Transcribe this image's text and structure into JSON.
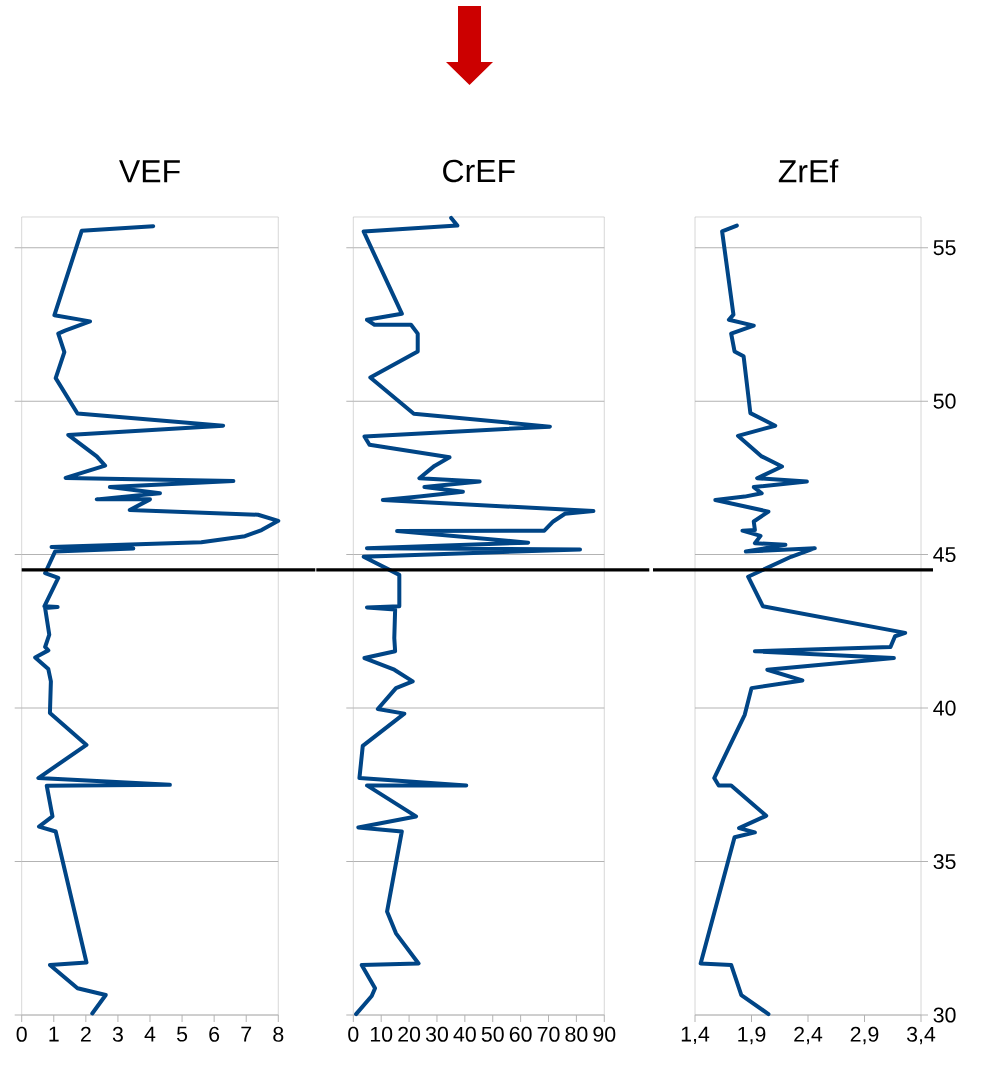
{
  "chart_data": [
    {
      "type": "line",
      "title": "VEF",
      "color": "#004586",
      "xlim": [
        0,
        8
      ],
      "xticks": [
        0,
        1,
        2,
        3,
        4,
        5,
        6,
        7,
        8
      ],
      "ylim": [
        30,
        56
      ],
      "yticks": [
        30,
        35,
        40,
        45,
        50,
        55
      ],
      "grid": "y",
      "tick_labels": "x",
      "ref_lines": [
        {
          "axis": "y",
          "value": 44.5,
          "color": "#000000"
        }
      ],
      "x": [
        4.1,
        1.87,
        1.02,
        2.13,
        1.35,
        1.14,
        1.33,
        1.06,
        1.74,
        6.28,
        1.45,
        2.34,
        2.6,
        1.37,
        6.6,
        2.75,
        4.31,
        2.34,
        4.0,
        3.37,
        7.37,
        8.0,
        7.48,
        6.96,
        5.6,
        0.93,
        3.48,
        1.04,
        0.73,
        1.14,
        0.71,
        1.12,
        0.73,
        0.86,
        0.73,
        0.83,
        0.42,
        0.83,
        0.91,
        0.88,
        2.02,
        0.52,
        4.62,
        0.78,
        0.96,
        0.54,
        1.06,
        2.02,
        0.88,
        1.74,
        2.62,
        2.2
      ],
      "values": [
        55.7,
        55.55,
        52.8,
        52.6,
        52.3,
        52.2,
        51.6,
        50.75,
        49.6,
        49.2,
        48.9,
        48.2,
        47.9,
        47.5,
        47.4,
        47.2,
        47.0,
        46.8,
        46.8,
        46.45,
        46.3,
        46.1,
        45.8,
        45.6,
        45.4,
        45.25,
        45.2,
        45.1,
        44.4,
        44.24,
        43.32,
        43.29,
        43.26,
        42.39,
        41.99,
        41.88,
        41.65,
        41.27,
        40.87,
        39.84,
        38.8,
        37.72,
        37.5,
        37.47,
        36.47,
        36.14,
        35.98,
        31.71,
        31.63,
        30.87,
        30.65,
        30.05
      ]
    },
    {
      "type": "line",
      "title": "CrEF",
      "color": "#004586",
      "xlim": [
        0,
        90
      ],
      "xticks": [
        0,
        10,
        20,
        30,
        40,
        50,
        60,
        70,
        80,
        90
      ],
      "ylim": [
        30,
        56
      ],
      "yticks": [
        30,
        35,
        40,
        45,
        50,
        55
      ],
      "grid": "y",
      "tick_labels": "x",
      "ref_lines": [
        {
          "axis": "y",
          "value": 44.5,
          "color": "#000000"
        }
      ],
      "x": [
        35.1,
        37.3,
        3.7,
        17.4,
        4.9,
        7.6,
        20.7,
        23.1,
        23.1,
        6.1,
        21.7,
        70.5,
        4.0,
        5.8,
        34.5,
        29.1,
        23.7,
        45.3,
        25.5,
        39.3,
        23.7,
        10.6,
        86.1,
        75.9,
        71.7,
        68.5,
        15.7,
        62.7,
        4.9,
        81.3,
        3.7,
        16.5,
        16.5,
        4.9,
        15.0,
        14.7,
        15.0,
        4.0,
        14.7,
        21.3,
        15.3,
        8.8,
        18.3,
        3.4,
        2.2,
        40.5,
        4.9,
        22.5,
        1.8,
        17.4,
        12.1,
        15.3,
        23.4,
        3.0,
        7.8,
        6.6,
        1.0
      ],
      "values": [
        55.97,
        55.72,
        55.53,
        52.85,
        52.65,
        52.49,
        52.49,
        52.2,
        51.62,
        50.77,
        49.59,
        49.17,
        48.85,
        48.58,
        48.17,
        47.89,
        47.49,
        47.38,
        47.2,
        47.05,
        46.89,
        46.78,
        46.42,
        46.33,
        46.08,
        45.78,
        45.77,
        45.39,
        45.21,
        45.17,
        44.93,
        44.34,
        43.32,
        43.28,
        43.21,
        42.28,
        41.85,
        41.63,
        41.25,
        40.87,
        40.65,
        39.97,
        39.82,
        38.77,
        37.72,
        37.48,
        37.48,
        36.47,
        36.11,
        35.98,
        33.37,
        32.66,
        31.68,
        31.63,
        30.87,
        30.62,
        30.03
      ]
    },
    {
      "type": "line",
      "title": "ZrEf",
      "color": "#004586",
      "xlim": [
        1.4,
        3.4
      ],
      "xticks": [
        {
          "value": 1.4,
          "label": "1,4"
        },
        {
          "value": 1.9,
          "label": "1,9"
        },
        {
          "value": 2.4,
          "label": "2,4"
        },
        {
          "value": 2.9,
          "label": "2,9"
        },
        {
          "value": 3.4,
          "label": "3,4"
        }
      ],
      "ylim": [
        30,
        56
      ],
      "yticks": [
        30,
        35,
        40,
        45,
        50,
        55
      ],
      "grid": "y",
      "ref_lines": [
        {
          "axis": "y",
          "value": 44.5,
          "color": "#000000"
        }
      ],
      "x": [
        1.77,
        1.64,
        1.74,
        1.7,
        1.92,
        1.72,
        1.75,
        1.83,
        1.89,
        2.11,
        1.78,
        1.99,
        2.17,
        1.95,
        2.39,
        1.92,
        1.99,
        1.84,
        1.58,
        2.05,
        1.92,
        1.93,
        1.82,
        1.98,
        1.93,
        2.2,
        1.85,
        2.46,
        2.25,
        1.87,
        2.0,
        3.26,
        3.17,
        3.13,
        1.93,
        3.16,
        2.04,
        2.35,
        1.9,
        1.84,
        1.57,
        1.61,
        1.72,
        2.03,
        1.79,
        1.93,
        1.75,
        1.45,
        1.72,
        1.81,
        2.05
      ],
      "values": [
        55.72,
        55.53,
        52.82,
        52.65,
        52.46,
        52.2,
        51.62,
        51.46,
        49.61,
        49.2,
        48.87,
        48.2,
        47.87,
        47.49,
        47.38,
        47.2,
        47.0,
        46.89,
        46.78,
        46.4,
        46.08,
        45.8,
        45.78,
        45.61,
        45.37,
        45.32,
        45.1,
        45.21,
        44.93,
        44.28,
        43.32,
        42.45,
        42.34,
        41.99,
        41.85,
        41.63,
        41.25,
        40.9,
        40.65,
        39.78,
        37.72,
        37.48,
        37.48,
        36.49,
        36.09,
        35.95,
        35.79,
        31.68,
        31.63,
        30.65,
        30.03
      ]
    }
  ]
}
